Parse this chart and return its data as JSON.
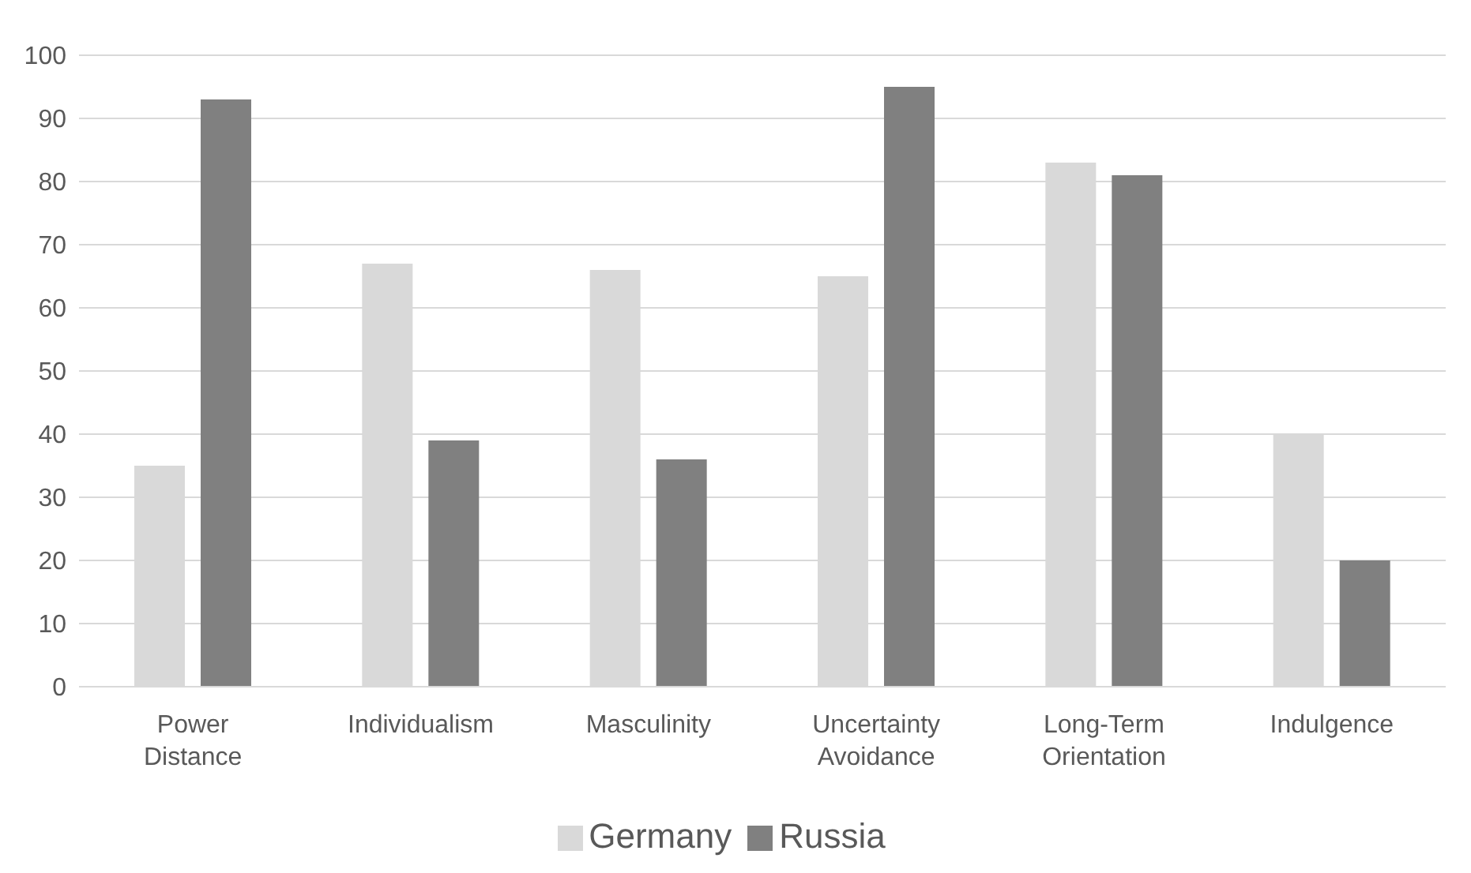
{
  "chart_data": {
    "type": "bar",
    "categories": [
      "Power Distance",
      "Individualism",
      "Masculinity",
      "Uncertainty Avoidance",
      "Long-Term Orientation",
      "Indulgence"
    ],
    "series": [
      {
        "name": "Germany",
        "color": "#d9d9d9",
        "values": [
          35,
          67,
          66,
          65,
          83,
          40
        ]
      },
      {
        "name": "Russia",
        "color": "#808080",
        "values": [
          93,
          39,
          36,
          95,
          81,
          20
        ]
      }
    ],
    "ylim": [
      0,
      100
    ],
    "yticks": [
      0,
      10,
      20,
      30,
      40,
      50,
      60,
      70,
      80,
      90,
      100
    ],
    "grid": "y",
    "legend": "bottom"
  }
}
